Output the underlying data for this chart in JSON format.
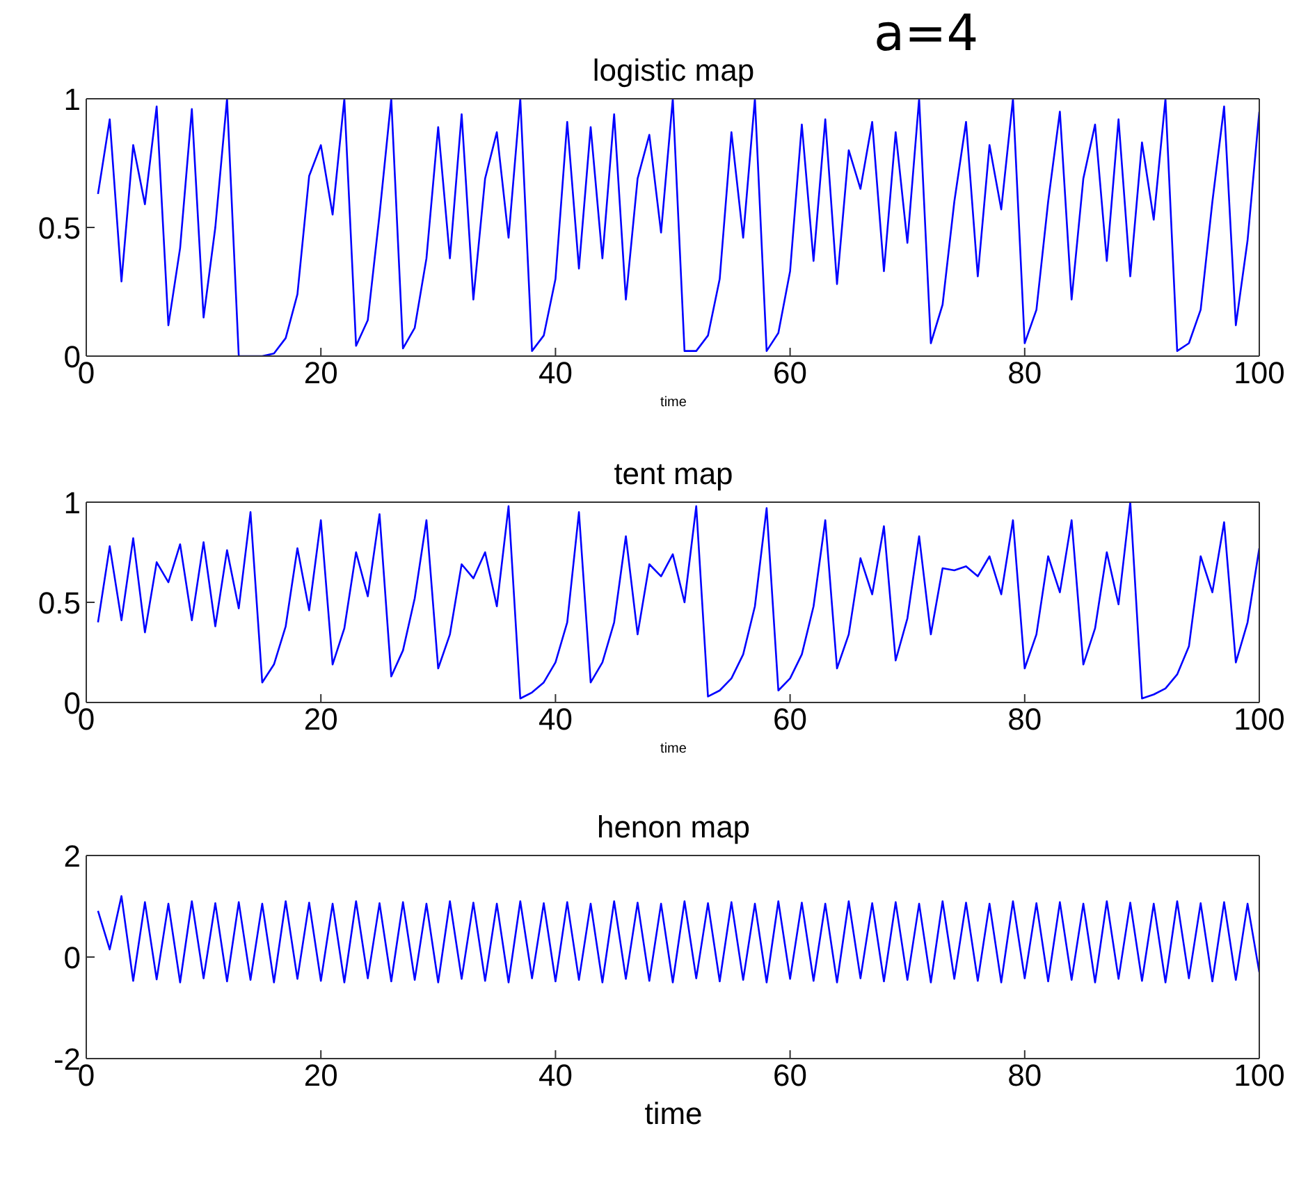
{
  "chart_data": [
    {
      "type": "line",
      "title": "logistic map",
      "xlabel": "time",
      "annotations": [
        "a=4"
      ],
      "color": "#0000ff",
      "xlim": [
        0,
        100
      ],
      "xticks": [
        0,
        20,
        40,
        60,
        80,
        100
      ],
      "ylim": [
        0,
        1
      ],
      "yticks": [
        0,
        0.5,
        1
      ],
      "x": [
        1,
        2,
        3,
        4,
        5,
        6,
        7,
        8,
        9,
        10,
        11,
        12,
        13,
        14,
        15,
        16,
        17,
        18,
        19,
        20,
        21,
        22,
        23,
        24,
        25,
        26,
        27,
        28,
        29,
        30,
        31,
        32,
        33,
        34,
        35,
        36,
        37,
        38,
        39,
        40,
        41,
        42,
        43,
        44,
        45,
        46,
        47,
        48,
        49,
        50,
        51,
        52,
        53,
        54,
        55,
        56,
        57,
        58,
        59,
        60,
        61,
        62,
        63,
        64,
        65,
        66,
        67,
        68,
        69,
        70,
        71,
        72,
        73,
        74,
        75,
        76,
        77,
        78,
        79,
        80,
        81,
        82,
        83,
        84,
        85,
        86,
        87,
        88,
        89,
        90,
        91,
        92,
        93,
        94,
        95,
        96,
        97,
        98,
        99,
        100
      ],
      "values": [
        0.63,
        0.92,
        0.29,
        0.82,
        0.59,
        0.97,
        0.12,
        0.42,
        0.96,
        0.15,
        0.5,
        1.0,
        0.0,
        0.0,
        0.0,
        0.01,
        0.07,
        0.24,
        0.7,
        0.82,
        0.55,
        1.0,
        0.04,
        0.14,
        0.55,
        1.0,
        0.03,
        0.11,
        0.38,
        0.89,
        0.38,
        0.94,
        0.22,
        0.69,
        0.87,
        0.46,
        1.0,
        0.02,
        0.08,
        0.3,
        0.91,
        0.34,
        0.89,
        0.38,
        0.94,
        0.22,
        0.69,
        0.86,
        0.48,
        1.0,
        0.02,
        0.02,
        0.08,
        0.3,
        0.87,
        0.46,
        1.0,
        0.02,
        0.09,
        0.33,
        0.9,
        0.37,
        0.92,
        0.28,
        0.8,
        0.65,
        0.91,
        0.33,
        0.87,
        0.44,
        1.0,
        0.05,
        0.2,
        0.6,
        0.91,
        0.31,
        0.82,
        0.57,
        1.0,
        0.05,
        0.18,
        0.6,
        0.95,
        0.22,
        0.69,
        0.9,
        0.37,
        0.92,
        0.31,
        0.83,
        0.53,
        1.0,
        0.02,
        0.05,
        0.18,
        0.6,
        0.97,
        0.12,
        0.45,
        0.95
      ]
    },
    {
      "type": "line",
      "title": "tent map",
      "xlabel": "time",
      "color": "#0000ff",
      "xlim": [
        0,
        100
      ],
      "xticks": [
        0,
        20,
        40,
        60,
        80,
        100
      ],
      "ylim": [
        0,
        1
      ],
      "yticks": [
        0,
        0.5,
        1
      ],
      "x": [
        1,
        2,
        3,
        4,
        5,
        6,
        7,
        8,
        9,
        10,
        11,
        12,
        13,
        14,
        15,
        16,
        17,
        18,
        19,
        20,
        21,
        22,
        23,
        24,
        25,
        26,
        27,
        28,
        29,
        30,
        31,
        32,
        33,
        34,
        35,
        36,
        37,
        38,
        39,
        40,
        41,
        42,
        43,
        44,
        45,
        46,
        47,
        48,
        49,
        50,
        51,
        52,
        53,
        54,
        55,
        56,
        57,
        58,
        59,
        60,
        61,
        62,
        63,
        64,
        65,
        66,
        67,
        68,
        69,
        70,
        71,
        72,
        73,
        74,
        75,
        76,
        77,
        78,
        79,
        80,
        81,
        82,
        83,
        84,
        85,
        86,
        87,
        88,
        89,
        90,
        91,
        92,
        93,
        94,
        95,
        96,
        97,
        98,
        99,
        100
      ],
      "values": [
        0.4,
        0.78,
        0.41,
        0.82,
        0.35,
        0.7,
        0.6,
        0.79,
        0.41,
        0.8,
        0.38,
        0.76,
        0.47,
        0.95,
        0.1,
        0.19,
        0.38,
        0.77,
        0.46,
        0.91,
        0.19,
        0.37,
        0.75,
        0.53,
        0.94,
        0.13,
        0.26,
        0.52,
        0.91,
        0.17,
        0.34,
        0.69,
        0.62,
        0.75,
        0.48,
        0.98,
        0.02,
        0.05,
        0.1,
        0.2,
        0.4,
        0.95,
        0.1,
        0.2,
        0.4,
        0.83,
        0.34,
        0.69,
        0.63,
        0.74,
        0.5,
        0.98,
        0.03,
        0.06,
        0.12,
        0.24,
        0.48,
        0.97,
        0.06,
        0.12,
        0.24,
        0.48,
        0.91,
        0.17,
        0.34,
        0.72,
        0.54,
        0.88,
        0.21,
        0.42,
        0.83,
        0.34,
        0.67,
        0.66,
        0.68,
        0.63,
        0.73,
        0.54,
        0.91,
        0.17,
        0.34,
        0.73,
        0.55,
        0.91,
        0.19,
        0.37,
        0.75,
        0.49,
        1.0,
        0.02,
        0.04,
        0.07,
        0.14,
        0.28,
        0.73,
        0.55,
        0.9,
        0.2,
        0.4,
        0.77
      ]
    },
    {
      "type": "line",
      "title": "henon map",
      "xlabel": "time",
      "color": "#0000ff",
      "xlim": [
        0,
        100
      ],
      "xticks": [
        0,
        20,
        40,
        60,
        80,
        100
      ],
      "ylim": [
        -2,
        2
      ],
      "yticks": [
        -2,
        0,
        2
      ],
      "x": [
        1,
        2,
        3,
        4,
        5,
        6,
        7,
        8,
        9,
        10,
        11,
        12,
        13,
        14,
        15,
        16,
        17,
        18,
        19,
        20,
        21,
        22,
        23,
        24,
        25,
        26,
        27,
        28,
        29,
        30,
        31,
        32,
        33,
        34,
        35,
        36,
        37,
        38,
        39,
        40,
        41,
        42,
        43,
        44,
        45,
        46,
        47,
        48,
        49,
        50,
        51,
        52,
        53,
        54,
        55,
        56,
        57,
        58,
        59,
        60,
        61,
        62,
        63,
        64,
        65,
        66,
        67,
        68,
        69,
        70,
        71,
        72,
        73,
        74,
        75,
        76,
        77,
        78,
        79,
        80,
        81,
        82,
        83,
        84,
        85,
        86,
        87,
        88,
        89,
        90,
        91,
        92,
        93,
        94,
        95,
        96,
        97,
        98,
        99,
        100
      ],
      "values": [
        0.91,
        0.15,
        1.2,
        -0.47,
        1.08,
        -0.44,
        1.05,
        -0.5,
        1.1,
        -0.42,
        1.06,
        -0.48,
        1.08,
        -0.45,
        1.05,
        -0.5,
        1.1,
        -0.43,
        1.07,
        -0.47,
        1.05,
        -0.5,
        1.1,
        -0.42,
        1.06,
        -0.48,
        1.08,
        -0.45,
        1.05,
        -0.5,
        1.1,
        -0.43,
        1.07,
        -0.47,
        1.05,
        -0.5,
        1.1,
        -0.42,
        1.06,
        -0.48,
        1.08,
        -0.45,
        1.05,
        -0.5,
        1.1,
        -0.43,
        1.07,
        -0.47,
        1.05,
        -0.5,
        1.1,
        -0.42,
        1.06,
        -0.48,
        1.08,
        -0.45,
        1.05,
        -0.5,
        1.1,
        -0.43,
        1.07,
        -0.47,
        1.05,
        -0.5,
        1.1,
        -0.42,
        1.06,
        -0.48,
        1.08,
        -0.45,
        1.05,
        -0.5,
        1.1,
        -0.43,
        1.07,
        -0.47,
        1.05,
        -0.5,
        1.1,
        -0.42,
        1.06,
        -0.48,
        1.08,
        -0.45,
        1.05,
        -0.5,
        1.1,
        -0.43,
        1.07,
        -0.47,
        1.05,
        -0.5,
        1.1,
        -0.42,
        1.06,
        -0.48,
        1.08,
        -0.45,
        1.05,
        -0.3
      ]
    }
  ]
}
